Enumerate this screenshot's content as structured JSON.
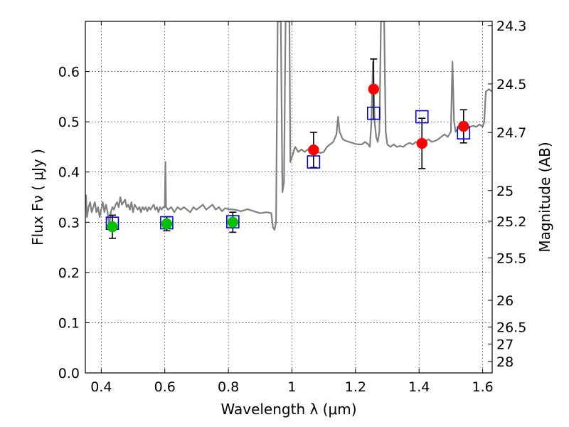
{
  "chart_data": {
    "type": "scatter",
    "xlabel": "Wavelength  λ (μm)",
    "ylabel": "Flux  Fν  ( μJy )",
    "y2label": "Magnitude (AB)",
    "xlim": [
      0.35,
      1.63
    ],
    "ylim": [
      0.0,
      0.7
    ],
    "grid": true,
    "x_ticks": [
      {
        "value": 0.4,
        "label": "0.4"
      },
      {
        "value": 0.6,
        "label": "0.6"
      },
      {
        "value": 0.8,
        "label": "0.8"
      },
      {
        "value": 1.0,
        "label": "1"
      },
      {
        "value": 1.2,
        "label": "1.2"
      },
      {
        "value": 1.4,
        "label": "1.4"
      },
      {
        "value": 1.6,
        "label": "1.6"
      }
    ],
    "y_ticks": [
      {
        "value": 0.0,
        "label": "0.0"
      },
      {
        "value": 0.1,
        "label": "0.1"
      },
      {
        "value": 0.2,
        "label": "0.2"
      },
      {
        "value": 0.3,
        "label": "0.3"
      },
      {
        "value": 0.4,
        "label": "0.4"
      },
      {
        "value": 0.5,
        "label": "0.5"
      },
      {
        "value": 0.6,
        "label": "0.6"
      }
    ],
    "y2_ticks": [
      {
        "value": 24.3,
        "label": "24.3"
      },
      {
        "value": 24.5,
        "label": "24.5"
      },
      {
        "value": 24.7,
        "label": "24.7"
      },
      {
        "value": 25.0,
        "label": "25"
      },
      {
        "value": 25.2,
        "label": "25.2"
      },
      {
        "value": 25.5,
        "label": "25.5"
      },
      {
        "value": 26.0,
        "label": "26"
      },
      {
        "value": 26.5,
        "label": "26.5"
      },
      {
        "value": 27.0,
        "label": "27"
      },
      {
        "value": 28.0,
        "label": "28"
      }
    ],
    "model_spectrum": {
      "color": "#808080",
      "points": [
        [
          0.352,
          0.355
        ],
        [
          0.355,
          0.31
        ],
        [
          0.36,
          0.33
        ],
        [
          0.365,
          0.34
        ],
        [
          0.37,
          0.32
        ],
        [
          0.375,
          0.33
        ],
        [
          0.38,
          0.34
        ],
        [
          0.385,
          0.32
        ],
        [
          0.39,
          0.33
        ],
        [
          0.395,
          0.31
        ],
        [
          0.4,
          0.325
        ],
        [
          0.405,
          0.34
        ],
        [
          0.41,
          0.32
        ],
        [
          0.415,
          0.335
        ],
        [
          0.42,
          0.32
        ],
        [
          0.425,
          0.29
        ],
        [
          0.43,
          0.32
        ],
        [
          0.435,
          0.33
        ],
        [
          0.44,
          0.325
        ],
        [
          0.445,
          0.335
        ],
        [
          0.45,
          0.34
        ],
        [
          0.455,
          0.33
        ],
        [
          0.46,
          0.35
        ],
        [
          0.465,
          0.335
        ],
        [
          0.47,
          0.34
        ],
        [
          0.475,
          0.345
        ],
        [
          0.48,
          0.33
        ],
        [
          0.485,
          0.335
        ],
        [
          0.49,
          0.325
        ],
        [
          0.495,
          0.34
        ],
        [
          0.5,
          0.32
        ],
        [
          0.505,
          0.335
        ],
        [
          0.51,
          0.33
        ],
        [
          0.515,
          0.325
        ],
        [
          0.52,
          0.33
        ],
        [
          0.525,
          0.32
        ],
        [
          0.53,
          0.33
        ],
        [
          0.535,
          0.325
        ],
        [
          0.54,
          0.33
        ],
        [
          0.545,
          0.322
        ],
        [
          0.55,
          0.33
        ],
        [
          0.555,
          0.325
        ],
        [
          0.56,
          0.33
        ],
        [
          0.565,
          0.335
        ],
        [
          0.57,
          0.325
        ],
        [
          0.575,
          0.33
        ],
        [
          0.58,
          0.32
        ],
        [
          0.585,
          0.33
        ],
        [
          0.59,
          0.325
        ],
        [
          0.595,
          0.33
        ],
        [
          0.6,
          0.33
        ],
        [
          0.602,
          0.42
        ],
        [
          0.604,
          0.33
        ],
        [
          0.61,
          0.325
        ],
        [
          0.62,
          0.33
        ],
        [
          0.63,
          0.32
        ],
        [
          0.64,
          0.33
        ],
        [
          0.65,
          0.325
        ],
        [
          0.66,
          0.33
        ],
        [
          0.67,
          0.325
        ],
        [
          0.68,
          0.32
        ],
        [
          0.69,
          0.33
        ],
        [
          0.7,
          0.325
        ],
        [
          0.71,
          0.33
        ],
        [
          0.72,
          0.335
        ],
        [
          0.73,
          0.325
        ],
        [
          0.74,
          0.33
        ],
        [
          0.75,
          0.335
        ],
        [
          0.76,
          0.325
        ],
        [
          0.77,
          0.33
        ],
        [
          0.78,
          0.322
        ],
        [
          0.79,
          0.328
        ],
        [
          0.8,
          0.326
        ],
        [
          0.82,
          0.325
        ],
        [
          0.84,
          0.322
        ],
        [
          0.86,
          0.326
        ],
        [
          0.88,
          0.322
        ],
        [
          0.9,
          0.318
        ],
        [
          0.92,
          0.32
        ],
        [
          0.935,
          0.318
        ],
        [
          0.94,
          0.29
        ],
        [
          0.945,
          0.285
        ],
        [
          0.95,
          0.3
        ],
        [
          0.955,
          0.7
        ],
        [
          0.965,
          0.7
        ],
        [
          0.97,
          0.36
        ],
        [
          0.975,
          0.38
        ],
        [
          0.98,
          0.7
        ],
        [
          0.992,
          0.7
        ],
        [
          0.995,
          0.42
        ],
        [
          1.0,
          0.43
        ],
        [
          1.005,
          0.44
        ],
        [
          1.01,
          0.45
        ],
        [
          1.02,
          0.44
        ],
        [
          1.03,
          0.445
        ],
        [
          1.04,
          0.44
        ],
        [
          1.05,
          0.445
        ],
        [
          1.06,
          0.44
        ],
        [
          1.07,
          0.445
        ],
        [
          1.08,
          0.44
        ],
        [
          1.09,
          0.438
        ],
        [
          1.1,
          0.44
        ],
        [
          1.11,
          0.45
        ],
        [
          1.12,
          0.455
        ],
        [
          1.13,
          0.46
        ],
        [
          1.14,
          0.475
        ],
        [
          1.145,
          0.51
        ],
        [
          1.15,
          0.48
        ],
        [
          1.16,
          0.465
        ],
        [
          1.17,
          0.462
        ],
        [
          1.18,
          0.46
        ],
        [
          1.19,
          0.458
        ],
        [
          1.2,
          0.456
        ],
        [
          1.21,
          0.455
        ],
        [
          1.22,
          0.455
        ],
        [
          1.23,
          0.46
        ],
        [
          1.24,
          0.455
        ],
        [
          1.245,
          0.45
        ],
        [
          1.25,
          0.5
        ],
        [
          1.255,
          0.62
        ],
        [
          1.26,
          0.5
        ],
        [
          1.265,
          0.47
        ],
        [
          1.27,
          0.46
        ],
        [
          1.275,
          0.48
        ],
        [
          1.28,
          0.7
        ],
        [
          1.29,
          0.7
        ],
        [
          1.295,
          0.48
        ],
        [
          1.3,
          0.455
        ],
        [
          1.31,
          0.45
        ],
        [
          1.32,
          0.455
        ],
        [
          1.33,
          0.45
        ],
        [
          1.34,
          0.452
        ],
        [
          1.35,
          0.45
        ],
        [
          1.36,
          0.455
        ],
        [
          1.37,
          0.458
        ],
        [
          1.38,
          0.455
        ],
        [
          1.39,
          0.46
        ],
        [
          1.4,
          0.458
        ],
        [
          1.41,
          0.46
        ],
        [
          1.42,
          0.462
        ],
        [
          1.43,
          0.465
        ],
        [
          1.44,
          0.46
        ],
        [
          1.45,
          0.462
        ],
        [
          1.46,
          0.465
        ],
        [
          1.47,
          0.47
        ],
        [
          1.48,
          0.475
        ],
        [
          1.49,
          0.47
        ],
        [
          1.5,
          0.48
        ],
        [
          1.505,
          0.62
        ],
        [
          1.51,
          0.5
        ],
        [
          1.515,
          0.48
        ],
        [
          1.52,
          0.485
        ],
        [
          1.53,
          0.49
        ],
        [
          1.54,
          0.485
        ],
        [
          1.55,
          0.488
        ],
        [
          1.56,
          0.49
        ],
        [
          1.57,
          0.492
        ],
        [
          1.58,
          0.49
        ],
        [
          1.59,
          0.495
        ],
        [
          1.6,
          0.49
        ],
        [
          1.605,
          0.5
        ],
        [
          1.61,
          0.56
        ],
        [
          1.62,
          0.565
        ],
        [
          1.63,
          0.56
        ]
      ]
    },
    "model_photometry": {
      "marker": "open-square",
      "color": "#0000cc",
      "points": [
        {
          "x": 0.435,
          "y": 0.298
        },
        {
          "x": 0.606,
          "y": 0.299
        },
        {
          "x": 0.814,
          "y": 0.301
        },
        {
          "x": 1.068,
          "y": 0.42
        },
        {
          "x": 1.257,
          "y": 0.517
        },
        {
          "x": 1.409,
          "y": 0.51
        },
        {
          "x": 1.54,
          "y": 0.478
        }
      ]
    },
    "observed_optical": {
      "marker": "filled-circle",
      "color": "#00c000",
      "points": [
        {
          "x": 0.435,
          "y": 0.291,
          "err": 0.023
        },
        {
          "x": 0.606,
          "y": 0.297,
          "err": 0.014
        },
        {
          "x": 0.814,
          "y": 0.3,
          "err": 0.02
        }
      ]
    },
    "observed_nir": {
      "marker": "filled-circle",
      "color": "#ff0000",
      "points": [
        {
          "x": 1.068,
          "y": 0.444,
          "err": 0.035
        },
        {
          "x": 1.257,
          "y": 0.565,
          "err": 0.06
        },
        {
          "x": 1.409,
          "y": 0.457,
          "err": 0.05
        },
        {
          "x": 1.54,
          "y": 0.491,
          "err": 0.033
        }
      ]
    }
  }
}
